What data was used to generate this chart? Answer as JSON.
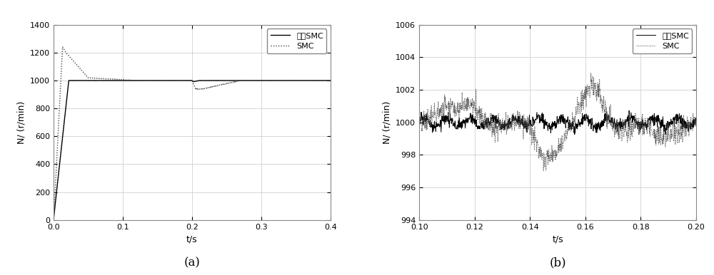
{
  "ax1": {
    "xlim": [
      0,
      0.4
    ],
    "ylim": [
      0,
      1400
    ],
    "xticks": [
      0,
      0.1,
      0.2,
      0.3,
      0.4
    ],
    "yticks": [
      0,
      200,
      400,
      600,
      800,
      1000,
      1200,
      1400
    ],
    "xlabel": "t/s",
    "ylabel": "N/ (r/min)",
    "label": "(a)",
    "legend": [
      "新型SMC",
      "SMC"
    ]
  },
  "ax2": {
    "xlim": [
      0.1,
      0.2
    ],
    "ylim": [
      994,
      1006
    ],
    "xticks": [
      0.1,
      0.12,
      0.14,
      0.16,
      0.18,
      0.2
    ],
    "yticks": [
      994,
      996,
      998,
      1000,
      1002,
      1004,
      1006
    ],
    "xlabel": "t/s",
    "ylabel": "N/ (r/min)",
    "label": "(b)",
    "legend": [
      "新型SMC",
      "SMC"
    ]
  },
  "line_color_solid": "#000000",
  "line_color_dotted": "#444444",
  "bg_color": "#ffffff",
  "grid_color": "#d0d0d0",
  "fontsize_label": 9,
  "fontsize_tick": 8,
  "fontsize_legend": 8,
  "fontsize_caption": 12
}
